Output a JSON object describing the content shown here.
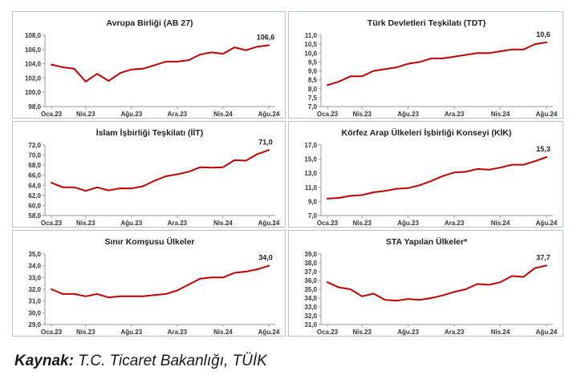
{
  "chart_data": [
    {
      "type": "line",
      "title": "Avrupa Birliği (AB 27)",
      "x": [
        "Oca.23",
        "Şub.23",
        "Mar.23",
        "Nis.23",
        "May.23",
        "Haz.23",
        "Tem.23",
        "Ağu.23",
        "Eyl.23",
        "Eki.23",
        "Kas.23",
        "Ara.23",
        "Oca.24",
        "Şub.24",
        "Mar.24",
        "Nis.24",
        "May.24",
        "Haz.24",
        "Tem.24",
        "Ağu.24"
      ],
      "xticks": [
        "Oca.23",
        "Nis.23",
        "Ağu.23",
        "Ara.23",
        "Nis.24",
        "Ağu.24"
      ],
      "series": [
        {
          "values": [
            103.9,
            103.5,
            103.3,
            101.5,
            102.6,
            101.6,
            102.7,
            103.2,
            103.3,
            103.8,
            104.3,
            104.3,
            104.5,
            105.3,
            105.6,
            105.4,
            106.3,
            105.9,
            106.4,
            106.6
          ]
        }
      ],
      "yticks": [
        "108,0",
        "106,0",
        "104,0",
        "102,0",
        "100,0",
        "98,0"
      ],
      "ylim": [
        98,
        108
      ],
      "last_label": "106,6",
      "line_color": "#c00000",
      "grid": false
    },
    {
      "type": "line",
      "title": "Türk Devletleri Teşkilatı (TDT)",
      "x": [
        "Oca.23",
        "Şub.23",
        "Mar.23",
        "Nis.23",
        "May.23",
        "Haz.23",
        "Tem.23",
        "Ağu.23",
        "Eyl.23",
        "Eki.23",
        "Kas.23",
        "Ara.23",
        "Oca.24",
        "Şub.24",
        "Mar.24",
        "Nis.24",
        "May.24",
        "Haz.24",
        "Tem.24",
        "Ağu.24"
      ],
      "xticks": [
        "Oca.23",
        "Nis.23",
        "Ağu.23",
        "Ara.23",
        "Nis.24",
        "Ağu.24"
      ],
      "series": [
        {
          "values": [
            8.2,
            8.4,
            8.7,
            8.7,
            9.0,
            9.1,
            9.2,
            9.4,
            9.5,
            9.7,
            9.7,
            9.8,
            9.9,
            10.0,
            10.0,
            10.1,
            10.2,
            10.2,
            10.5,
            10.6
          ]
        }
      ],
      "yticks": [
        "11,0",
        "10,5",
        "10,0",
        "9,5",
        "9,0",
        "8,5",
        "8,0",
        "7,5",
        "7,0"
      ],
      "ylim": [
        7,
        11
      ],
      "last_label": "10,6",
      "line_color": "#c00000",
      "grid": false
    },
    {
      "type": "line",
      "title": "İslam İşbirliği Teşkilatı (İİT)",
      "x": [
        "Oca.23",
        "Şub.23",
        "Mar.23",
        "Nis.23",
        "May.23",
        "Haz.23",
        "Tem.23",
        "Ağu.23",
        "Eyl.23",
        "Eki.23",
        "Kas.23",
        "Ara.23",
        "Oca.24",
        "Şub.24",
        "Mar.24",
        "Nis.24",
        "May.24",
        "Haz.24",
        "Tem.24",
        "Ağu.24"
      ],
      "xticks": [
        "Oca.23",
        "Nis.23",
        "Ağu.23",
        "Ara.23",
        "Nis.24",
        "Ağu.24"
      ],
      "series": [
        {
          "values": [
            64.5,
            63.6,
            63.6,
            62.9,
            63.6,
            63.0,
            63.4,
            63.4,
            63.8,
            64.9,
            65.8,
            66.2,
            66.7,
            67.6,
            67.5,
            67.6,
            69.0,
            68.9,
            70.2,
            71.0
          ]
        }
      ],
      "yticks": [
        "72,0",
        "70,0",
        "68,0",
        "66,0",
        "64,0",
        "62,0",
        "60,0",
        "58,0"
      ],
      "ylim": [
        58,
        72
      ],
      "last_label": "71,0",
      "line_color": "#c00000",
      "grid": false
    },
    {
      "type": "line",
      "title": "Körfez Arap Ülkeleri İşbirliği Konseyi (KİK)",
      "x": [
        "Oca.23",
        "Şub.23",
        "Mar.23",
        "Nis.23",
        "May.23",
        "Haz.23",
        "Tem.23",
        "Ağu.23",
        "Eyl.23",
        "Eki.23",
        "Kas.23",
        "Ara.23",
        "Oca.24",
        "Şub.24",
        "Mar.24",
        "Nis.24",
        "May.24",
        "Haz.24",
        "Tem.24",
        "Ağu.24"
      ],
      "xticks": [
        "Oca.23",
        "Nis.23",
        "Ağu.23",
        "Ara.23",
        "Nis.24",
        "Ağu.24"
      ],
      "series": [
        {
          "values": [
            9.4,
            9.5,
            9.8,
            9.9,
            10.3,
            10.5,
            10.8,
            10.9,
            11.3,
            11.9,
            12.6,
            13.1,
            13.2,
            13.6,
            13.5,
            13.8,
            14.2,
            14.2,
            14.7,
            15.3
          ]
        }
      ],
      "yticks": [
        "17,0",
        "15,0",
        "13,0",
        "11,0",
        "9,0",
        "7,0"
      ],
      "ylim": [
        7,
        17
      ],
      "last_label": "15,3",
      "line_color": "#c00000",
      "grid": false
    },
    {
      "type": "line",
      "title": "Sınır Komşusu Ülkeler",
      "x": [
        "Oca.23",
        "Şub.23",
        "Mar.23",
        "Nis.23",
        "May.23",
        "Haz.23",
        "Tem.23",
        "Ağu.23",
        "Eyl.23",
        "Eki.23",
        "Kas.23",
        "Ara.23",
        "Oca.24",
        "Şub.24",
        "Mar.24",
        "Nis.24",
        "May.24",
        "Haz.24",
        "Tem.24",
        "Ağu.24"
      ],
      "xticks": [
        "Oca.23",
        "Nis.23",
        "Ağu.23",
        "Ara.23",
        "Nis.24",
        "Ağu.24"
      ],
      "series": [
        {
          "values": [
            32.0,
            31.6,
            31.6,
            31.4,
            31.6,
            31.3,
            31.4,
            31.4,
            31.4,
            31.5,
            31.6,
            31.9,
            32.4,
            32.9,
            33.0,
            33.0,
            33.4,
            33.5,
            33.7,
            34.0
          ]
        }
      ],
      "yticks": [
        "35,0",
        "34,0",
        "33,0",
        "32,0",
        "31,0",
        "30,0",
        "29,0"
      ],
      "ylim": [
        29,
        35
      ],
      "last_label": "34,0",
      "line_color": "#c00000",
      "grid": false
    },
    {
      "type": "line",
      "title": "STA Yapılan Ülkeler*",
      "x": [
        "Oca.23",
        "Şub.23",
        "Mar.23",
        "Nis.23",
        "May.23",
        "Haz.23",
        "Tem.23",
        "Ağu.23",
        "Eyl.23",
        "Eki.23",
        "Kas.23",
        "Ara.23",
        "Oca.24",
        "Şub.24",
        "Mar.24",
        "Nis.24",
        "May.24",
        "Haz.24",
        "Tem.24",
        "Ağu.24"
      ],
      "xticks": [
        "Oca.23",
        "Nis.23",
        "Ağu.23",
        "Ara.23",
        "Nis.24",
        "Ağu.24"
      ],
      "series": [
        {
          "values": [
            35.8,
            35.2,
            35.0,
            34.2,
            34.5,
            33.8,
            33.7,
            33.9,
            33.8,
            34.0,
            34.3,
            34.7,
            35.0,
            35.6,
            35.5,
            35.8,
            36.5,
            36.4,
            37.4,
            37.7
          ]
        }
      ],
      "yticks": [
        "39,0",
        "38,0",
        "37,0",
        "36,0",
        "35,0",
        "34,0",
        "33,0",
        "32,0",
        "31,0"
      ],
      "ylim": [
        31,
        39
      ],
      "last_label": "37,7",
      "line_color": "#c00000",
      "grid": false
    }
  ],
  "source": {
    "label": "Kaynak:",
    "text": " T.C. Ticaret Bakanlığı, TÜİK"
  }
}
